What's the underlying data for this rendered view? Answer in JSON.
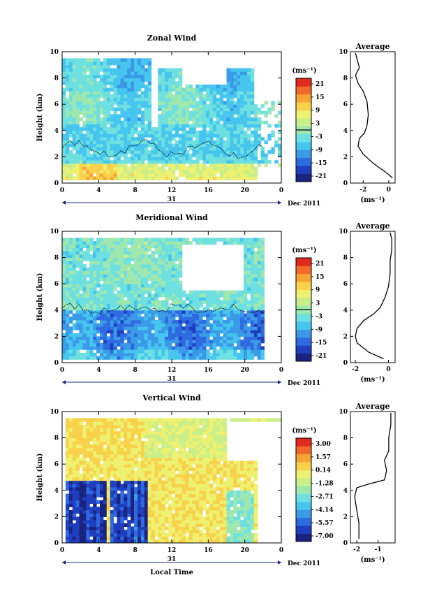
{
  "figure": {
    "xlabel": "Local Time",
    "date_label": "Dec 2011",
    "day_label": "31",
    "unit_label": "(ms⁻¹)",
    "colors": [
      "#1a237e",
      "#1f3fbf",
      "#2f6be0",
      "#3a9ae8",
      "#46c6ef",
      "#6fe0e0",
      "#9ee8b0",
      "#c9ef8a",
      "#eef070",
      "#f8d24a",
      "#f7a437",
      "#f26a2a",
      "#e02a1e"
    ]
  },
  "chart_data": [
    {
      "type": "heatmap",
      "title": "Zonal Wind",
      "ylabel": "Height (km)",
      "xlim": [
        0,
        24
      ],
      "ylim": [
        0,
        10
      ],
      "xticks": [
        "0",
        "4",
        "8",
        "12",
        "16",
        "20",
        "0"
      ],
      "yticks": [
        "0",
        "2",
        "4",
        "6",
        "8",
        "10"
      ],
      "colorbar": {
        "ticks": [
          "21",
          "15",
          "9",
          "3",
          "-3",
          "-9",
          "-15",
          "-21"
        ],
        "range": [
          -24,
          24
        ]
      },
      "average": {
        "title": "Average",
        "xticks": [
          "-2",
          "0"
        ],
        "xlim": [
          -3,
          0.5
        ],
        "xunit": "(ms⁻¹)",
        "profile": [
          [
            0.3,
            0.4
          ],
          [
            -0.2,
            0.8
          ],
          [
            -1.2,
            1.5
          ],
          [
            -2.0,
            2.2
          ],
          [
            -2.4,
            2.8
          ],
          [
            -2.3,
            3.4
          ],
          [
            -1.9,
            3.8
          ],
          [
            -1.7,
            4.4
          ],
          [
            -1.6,
            5.2
          ],
          [
            -1.7,
            6.2
          ],
          [
            -2.0,
            7.0
          ],
          [
            -2.4,
            7.6
          ],
          [
            -2.6,
            8.2
          ],
          [
            -2.3,
            8.8
          ],
          [
            -2.5,
            9.5
          ],
          [
            -2.6,
            9.9
          ]
        ]
      }
    },
    {
      "type": "heatmap",
      "title": "Meridional Wind",
      "ylabel": "Height (km)",
      "xlim": [
        0,
        24
      ],
      "ylim": [
        0,
        10
      ],
      "xticks": [
        "0",
        "4",
        "8",
        "12",
        "16",
        "20",
        "0"
      ],
      "yticks": [
        "0",
        "2",
        "4",
        "6",
        "8",
        "10"
      ],
      "colorbar": {
        "ticks": [
          "21",
          "15",
          "9",
          "3",
          "-3",
          "-9",
          "-15",
          "-21"
        ],
        "range": [
          -24,
          24
        ]
      },
      "average": {
        "title": "Average",
        "xticks": [
          "-2",
          "0"
        ],
        "xlim": [
          -2.3,
          0.4
        ],
        "xunit": "(ms⁻¹)",
        "profile": [
          [
            -0.3,
            0.3
          ],
          [
            -1.2,
            0.8
          ],
          [
            -1.9,
            1.5
          ],
          [
            -2.0,
            2.0
          ],
          [
            -1.9,
            2.6
          ],
          [
            -1.5,
            3.2
          ],
          [
            -0.9,
            3.7
          ],
          [
            -0.5,
            4.2
          ],
          [
            -0.2,
            5.0
          ],
          [
            0.0,
            5.8
          ],
          [
            0.1,
            6.8
          ],
          [
            0.1,
            7.8
          ],
          [
            0.2,
            8.6
          ],
          [
            0.2,
            9.4
          ],
          [
            0.1,
            9.9
          ]
        ]
      }
    },
    {
      "type": "heatmap",
      "title": "Vertical Wind",
      "ylabel": "Height (km)",
      "xlim": [
        0,
        24
      ],
      "ylim": [
        0,
        10
      ],
      "xticks": [
        "0",
        "4",
        "8",
        "12",
        "16",
        "20",
        "0"
      ],
      "yticks": [
        "0",
        "2",
        "4",
        "6",
        "8",
        "10"
      ],
      "colorbar": {
        "ticks": [
          "3.00",
          "1.57",
          "0.14",
          "-1.28",
          "-2.71",
          "-4.14",
          "-5.57",
          "-7.00"
        ],
        "range": [
          -8.0,
          4.0
        ]
      },
      "average": {
        "title": "Average",
        "xticks": [
          "-2",
          "-1"
        ],
        "xlim": [
          -2.3,
          -0.2
        ],
        "xunit": "(ms⁻¹)",
        "profile": [
          [
            -1.9,
            0.3
          ],
          [
            -1.9,
            1.5
          ],
          [
            -2.0,
            2.5
          ],
          [
            -2.1,
            3.5
          ],
          [
            -2.0,
            4.2
          ],
          [
            -1.4,
            4.5
          ],
          [
            -0.7,
            4.8
          ],
          [
            -0.6,
            5.5
          ],
          [
            -0.7,
            6.3
          ],
          [
            -0.5,
            7.0
          ],
          [
            -0.5,
            8.0
          ],
          [
            -0.4,
            9.0
          ],
          [
            -0.4,
            9.9
          ]
        ]
      }
    }
  ]
}
